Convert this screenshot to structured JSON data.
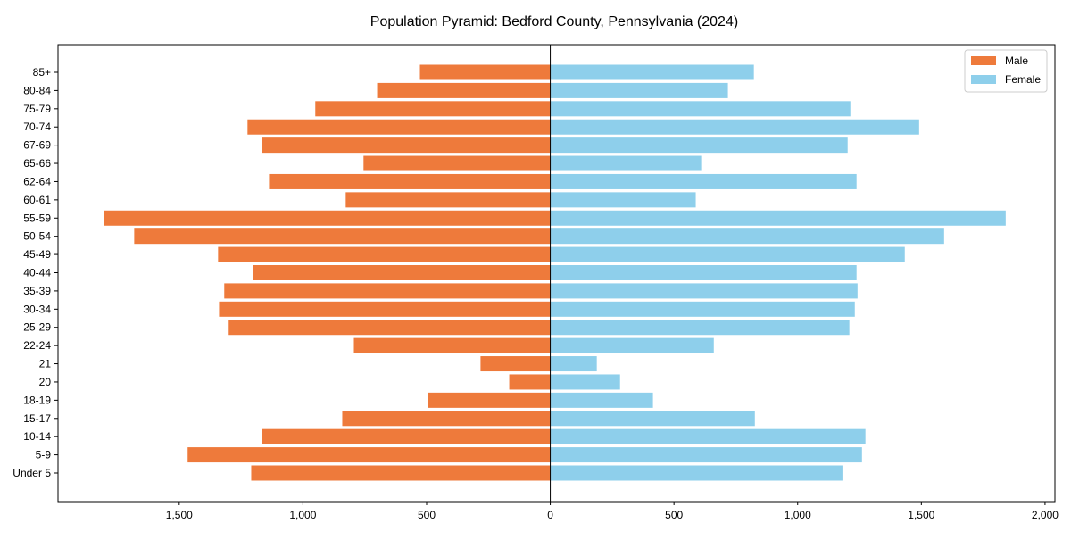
{
  "chart_data": {
    "type": "bar",
    "orientation": "horizontal-pyramid",
    "title": "Population Pyramid: Bedford County, Pennsylvania (2024)",
    "xlabel": "",
    "ylabel": "",
    "xlim": [
      -1990,
      2040
    ],
    "xticks": [
      -1500,
      -1000,
      -500,
      0,
      500,
      1000,
      1500,
      2000
    ],
    "xtick_labels": [
      "1,500",
      "1,000",
      "500",
      "0",
      "500",
      "1,000",
      "1,500",
      "2,000"
    ],
    "grid": false,
    "legend": {
      "position": "top-right",
      "entries": [
        "Male",
        "Female"
      ]
    },
    "categories": [
      "85+",
      "80-84",
      "75-79",
      "70-74",
      "67-69",
      "65-66",
      "62-64",
      "60-61",
      "55-59",
      "50-54",
      "45-49",
      "40-44",
      "35-39",
      "30-34",
      "25-29",
      "22-24",
      "21",
      "20",
      "18-19",
      "15-17",
      "10-14",
      "5-9",
      "Under 5"
    ],
    "series": [
      {
        "name": "Male",
        "color": "#ee7a3b",
        "values": [
          527,
          700,
          950,
          1224,
          1166,
          755,
          1137,
          827,
          1805,
          1682,
          1343,
          1202,
          1318,
          1339,
          1300,
          794,
          282,
          166,
          495,
          841,
          1166,
          1466,
          1209
        ]
      },
      {
        "name": "Female",
        "color": "#8ecfeb",
        "values": [
          823,
          718,
          1213,
          1491,
          1202,
          610,
          1238,
          588,
          1841,
          1592,
          1433,
          1238,
          1242,
          1231,
          1209,
          661,
          188,
          282,
          415,
          827,
          1274,
          1260,
          1181
        ]
      }
    ]
  }
}
